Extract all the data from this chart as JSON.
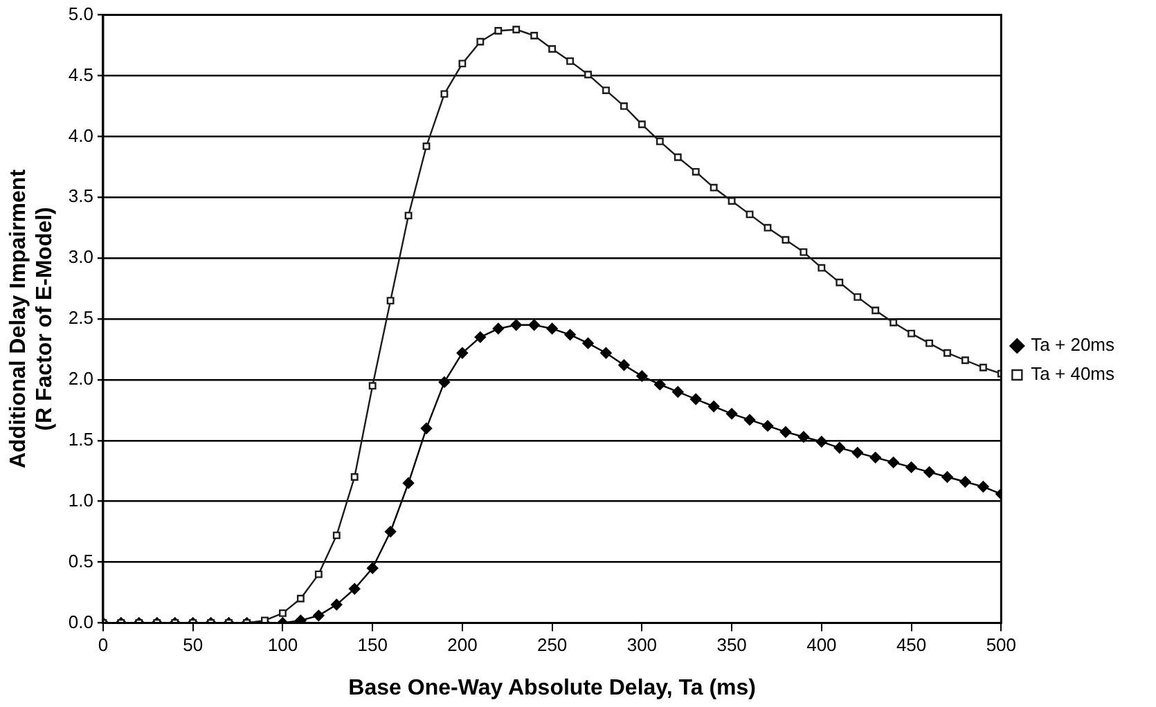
{
  "chart_data": {
    "type": "line",
    "xlabel": "Base One-Way Absolute Delay, Ta (ms)",
    "ylabel": "Additional Delay Impairment\n(R Factor of E-Model)",
    "x": [
      0,
      10,
      20,
      30,
      40,
      50,
      60,
      70,
      80,
      90,
      100,
      110,
      120,
      130,
      140,
      150,
      160,
      170,
      180,
      190,
      200,
      210,
      220,
      230,
      240,
      250,
      260,
      270,
      280,
      290,
      300,
      310,
      320,
      330,
      340,
      350,
      360,
      370,
      380,
      390,
      400,
      410,
      420,
      430,
      440,
      450,
      460,
      470,
      480,
      490,
      500
    ],
    "series": [
      {
        "name": "Ta + 20ms",
        "color": "#000000",
        "marker": "diamond",
        "values": [
          0,
          0,
          0,
          0,
          0,
          0,
          0,
          0,
          0,
          0,
          0,
          0.02,
          0.06,
          0.15,
          0.28,
          0.45,
          0.75,
          1.15,
          1.6,
          1.98,
          2.22,
          2.35,
          2.42,
          2.45,
          2.45,
          2.42,
          2.37,
          2.3,
          2.22,
          2.12,
          2.03,
          1.96,
          1.9,
          1.84,
          1.78,
          1.72,
          1.67,
          1.62,
          1.57,
          1.53,
          1.49,
          1.44,
          1.4,
          1.36,
          1.32,
          1.28,
          1.24,
          1.2,
          1.16,
          1.12,
          1.06
        ]
      },
      {
        "name": "Ta + 40ms",
        "color": "#1c1c1c",
        "marker": "square",
        "values": [
          0,
          0,
          0,
          0,
          0,
          0,
          0,
          0,
          0,
          0.02,
          0.08,
          0.2,
          0.4,
          0.72,
          1.2,
          1.95,
          2.65,
          3.35,
          3.92,
          4.35,
          4.6,
          4.78,
          4.87,
          4.88,
          4.83,
          4.72,
          4.62,
          4.51,
          4.38,
          4.25,
          4.1,
          3.96,
          3.83,
          3.71,
          3.58,
          3.47,
          3.36,
          3.25,
          3.15,
          3.05,
          2.92,
          2.8,
          2.68,
          2.57,
          2.47,
          2.38,
          2.3,
          2.22,
          2.16,
          2.1,
          2.05
        ]
      }
    ],
    "xlim": [
      0,
      500
    ],
    "xticks": [
      0,
      50,
      100,
      150,
      200,
      250,
      300,
      350,
      400,
      450,
      500
    ],
    "ylim": [
      0,
      5
    ],
    "yticks": [
      {
        "value": 0,
        "label": "0.0"
      },
      {
        "value": 0.5,
        "label": "0.5"
      },
      {
        "value": 1,
        "label": "1.0"
      },
      {
        "value": 1.5,
        "label": "1.5"
      },
      {
        "value": 2,
        "label": "2.0"
      },
      {
        "value": 2.5,
        "label": "2.5"
      },
      {
        "value": 3,
        "label": "3.0"
      },
      {
        "value": 3.5,
        "label": "3.5"
      },
      {
        "value": 4,
        "label": "4.0"
      },
      {
        "value": 4.5,
        "label": "4.5"
      },
      {
        "value": 5,
        "label": "5.0"
      }
    ],
    "grid": "y",
    "legend": "right",
    "line_style": "solid"
  }
}
